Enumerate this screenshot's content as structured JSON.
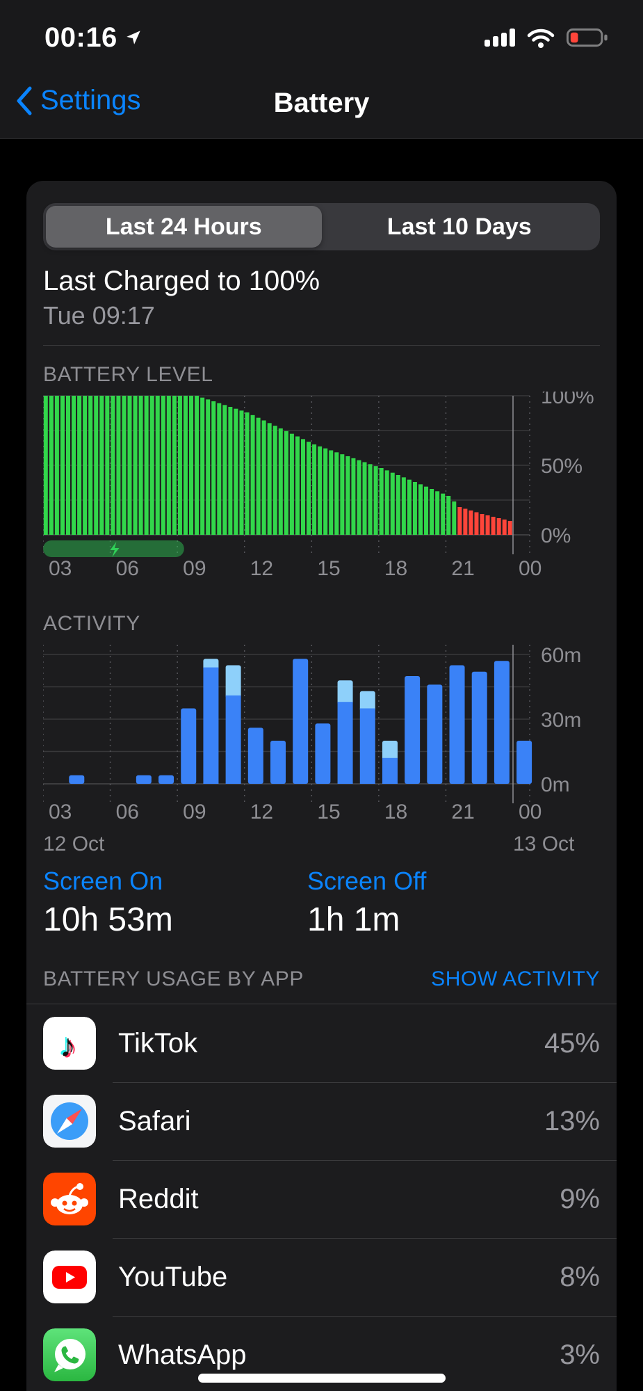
{
  "status_bar": {
    "time": "00:16",
    "icons": [
      "location-icon",
      "cellular-icon",
      "wifi-icon",
      "battery-icon"
    ],
    "battery_color": "#ff453a"
  },
  "nav": {
    "back_label": "Settings",
    "title": "Battery"
  },
  "segmented": {
    "options": [
      "Last 24 Hours",
      "Last 10 Days"
    ],
    "selected": 0
  },
  "charge_info": {
    "title": "Last Charged to 100%",
    "subtitle": "Tue 09:17"
  },
  "chart_data": [
    {
      "type": "bar",
      "title": "BATTERY LEVEL",
      "unit": "percent",
      "ylim": [
        0,
        100
      ],
      "gridlines": [
        0,
        25,
        50,
        75,
        100
      ],
      "ylabels": [
        {
          "value": 100,
          "label": "100%"
        },
        {
          "value": 50,
          "label": "50%"
        },
        {
          "value": 0,
          "label": "0%"
        }
      ],
      "x_ticks": [
        "03",
        "06",
        "09",
        "12",
        "15",
        "18",
        "21",
        "00"
      ],
      "x_start_hour": 3,
      "x_tick_interval": 3,
      "bar_interval_hours": 0.25,
      "breakpoints": [
        [
          3,
          100
        ],
        [
          9.75,
          100
        ],
        [
          12,
          88
        ],
        [
          15,
          65
        ],
        [
          18,
          48
        ],
        [
          21,
          28
        ],
        [
          21.5,
          20
        ],
        [
          22.5,
          15
        ],
        [
          23.75,
          10
        ]
      ],
      "low_threshold": 20,
      "colors": {
        "normal": "#32d74b",
        "low": "#ff453a"
      },
      "charging_overlay": {
        "start_hour": 3,
        "end_hour": 9.3,
        "icon": "bolt-icon",
        "fill": "rgba(48,209,88,0.45)",
        "bolt_color": "#30d158"
      }
    },
    {
      "type": "bar",
      "title": "ACTIVITY",
      "unit": "minutes",
      "ylim": [
        0,
        65
      ],
      "gridlines": [
        0,
        15,
        30,
        45,
        60
      ],
      "ylabels": [
        {
          "value": 60,
          "label": "60m"
        },
        {
          "value": 30,
          "label": "30m"
        },
        {
          "value": 0,
          "label": "0m"
        }
      ],
      "x_ticks": [
        "03",
        "06",
        "09",
        "12",
        "15",
        "18",
        "21",
        "00"
      ],
      "x_start_hour": 3,
      "x_tick_interval": 3,
      "date_labels": {
        "start": "12 Oct",
        "end": "13 Oct"
      },
      "colors": {
        "main": "#3a82f7",
        "light": "#8ed0fa"
      },
      "bars": [
        {
          "hour": 4,
          "total": 4,
          "light": 0
        },
        {
          "hour": 7,
          "total": 4,
          "light": 0
        },
        {
          "hour": 8,
          "total": 4,
          "light": 0
        },
        {
          "hour": 9,
          "total": 35,
          "light": 0
        },
        {
          "hour": 10,
          "total": 58,
          "light": 4
        },
        {
          "hour": 11,
          "total": 55,
          "light": 14
        },
        {
          "hour": 12,
          "total": 26,
          "light": 0
        },
        {
          "hour": 13,
          "total": 20,
          "light": 0
        },
        {
          "hour": 14,
          "total": 58,
          "light": 0
        },
        {
          "hour": 15,
          "total": 28,
          "light": 0
        },
        {
          "hour": 16,
          "total": 48,
          "light": 10
        },
        {
          "hour": 17,
          "total": 43,
          "light": 8
        },
        {
          "hour": 18,
          "total": 20,
          "light": 8
        },
        {
          "hour": 19,
          "total": 50,
          "light": 0
        },
        {
          "hour": 20,
          "total": 46,
          "light": 0
        },
        {
          "hour": 21,
          "total": 55,
          "light": 0
        },
        {
          "hour": 22,
          "total": 52,
          "light": 0
        },
        {
          "hour": 23,
          "total": 57,
          "light": 0
        },
        {
          "hour": 24,
          "total": 20,
          "light": 0
        }
      ]
    }
  ],
  "screen_stats": [
    {
      "label": "Screen On",
      "value": "10h 53m"
    },
    {
      "label": "Screen Off",
      "value": "1h 1m"
    }
  ],
  "usage_section": {
    "title": "BATTERY USAGE BY APP",
    "action": "SHOW ACTIVITY"
  },
  "apps": [
    {
      "name": "TikTok",
      "percent": "45%",
      "icon": "tiktok-icon"
    },
    {
      "name": "Safari",
      "percent": "13%",
      "icon": "safari-icon"
    },
    {
      "name": "Reddit",
      "percent": "9%",
      "icon": "reddit-icon"
    },
    {
      "name": "YouTube",
      "percent": "8%",
      "icon": "youtube-icon"
    },
    {
      "name": "WhatsApp",
      "percent": "3%",
      "icon": "whatsapp-icon"
    }
  ],
  "accent": "#0a84ff"
}
